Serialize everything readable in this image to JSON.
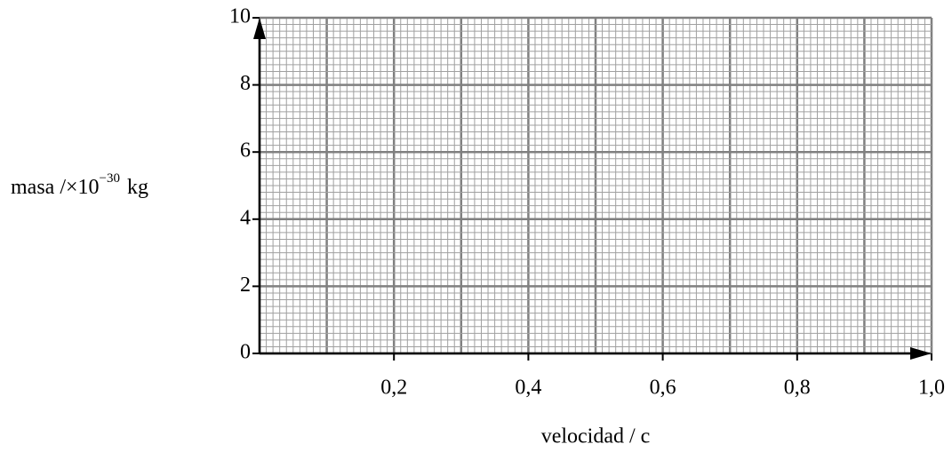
{
  "chart_data": {
    "type": "grid",
    "xlabel": "velocidad / c",
    "ylabel": {
      "text": "masa /×10",
      "exponent": "−30",
      "unit": "kg"
    },
    "xlim": [
      0,
      1
    ],
    "ylim": [
      0,
      10
    ],
    "xticks": [
      {
        "value": 0.2,
        "label": "0,2"
      },
      {
        "value": 0.4,
        "label": "0,4"
      },
      {
        "value": 0.6,
        "label": "0,6"
      },
      {
        "value": 0.8,
        "label": "0,8"
      },
      {
        "value": 1.0,
        "label": "1,0"
      }
    ],
    "yticks": [
      0,
      2,
      4,
      6,
      8,
      10
    ],
    "grid": true
  }
}
